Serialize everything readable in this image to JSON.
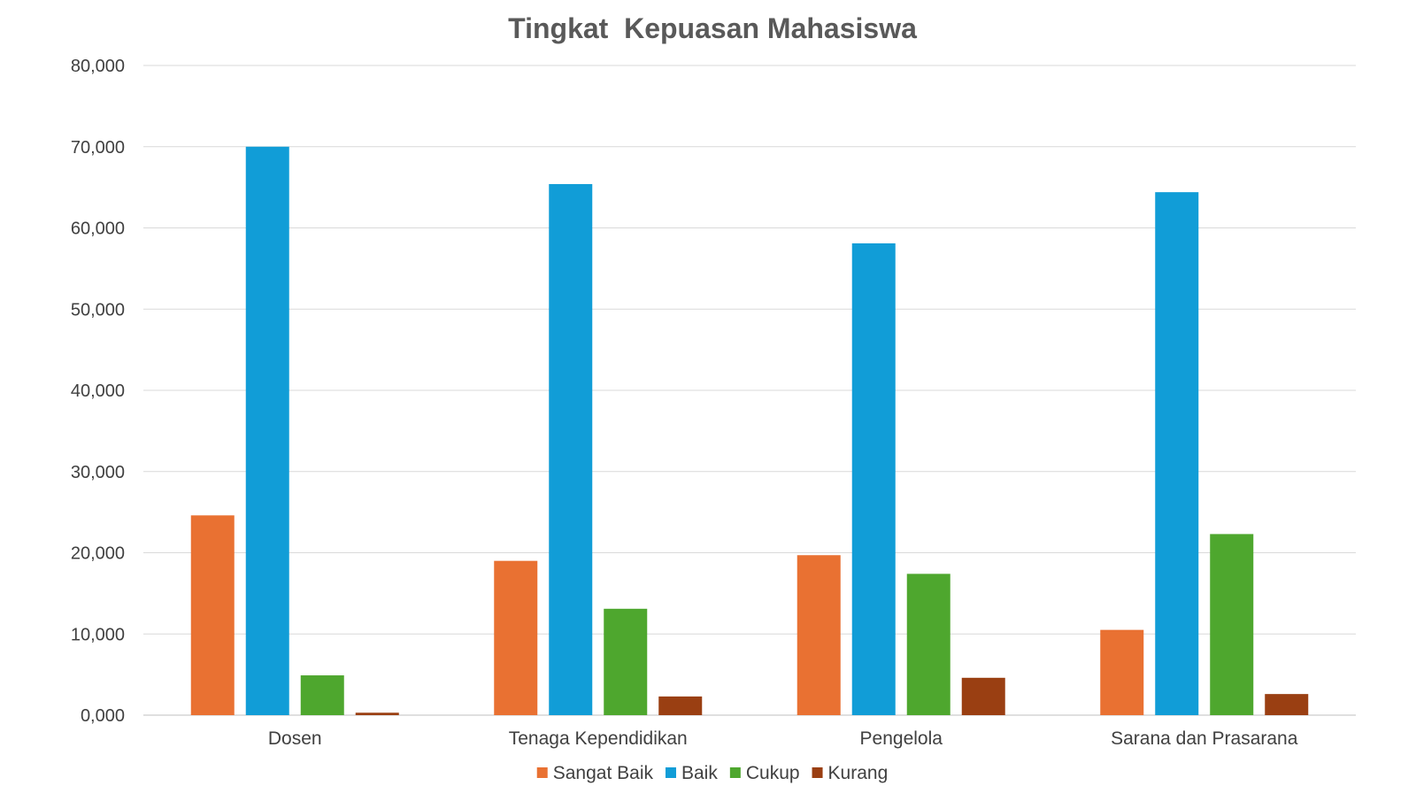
{
  "chart_data": {
    "type": "bar",
    "title": "Tingkat  Kepuasan Mahasiswa",
    "xlabel": "",
    "ylabel": "",
    "categories": [
      "Dosen",
      "Tenaga Kependidikan",
      "Pengelola",
      "Sarana dan Prasarana"
    ],
    "series": [
      {
        "name": "Sangat Baik",
        "color": "#E97132",
        "values": [
          24.6,
          19.0,
          19.7,
          10.5
        ]
      },
      {
        "name": "Baik",
        "color": "#119DD7",
        "values": [
          70.0,
          65.4,
          58.1,
          64.4
        ]
      },
      {
        "name": "Cukup",
        "color": "#4EA72E",
        "values": [
          4.9,
          13.1,
          17.4,
          22.3
        ]
      },
      {
        "name": "Kurang",
        "color": "#9A3F12",
        "values": [
          0.3,
          2.3,
          4.6,
          2.6
        ]
      }
    ],
    "ylim": [
      0,
      80
    ],
    "yticks": [
      0,
      10,
      20,
      30,
      40,
      50,
      60,
      70,
      80
    ],
    "ytick_labels": [
      "0,000",
      "10,000",
      "20,000",
      "30,000",
      "40,000",
      "50,000",
      "60,000",
      "70,000",
      "80,000"
    ],
    "grid": true,
    "legend_position": "bottom"
  }
}
